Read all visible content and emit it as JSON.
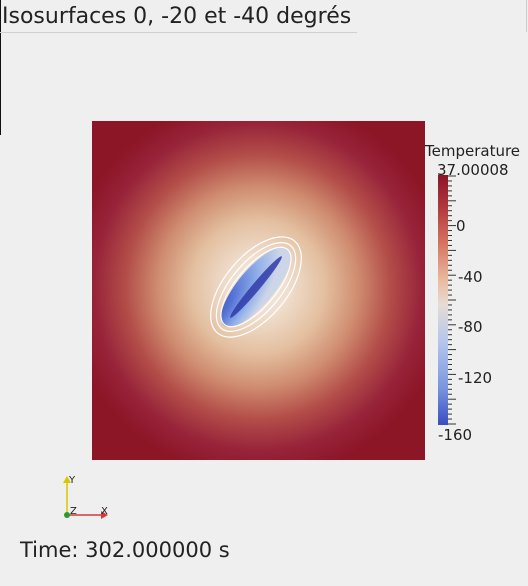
{
  "title": "Isosurfaces 0, -20 et -40 degrés",
  "colorbar": {
    "title": "Temperature",
    "max_label": "37.00008",
    "min_label": "-160",
    "tick_labels": [
      "0",
      "-40",
      "-80",
      "-120"
    ]
  },
  "orientation_axes": {
    "x_label": "X",
    "y_label": "Y",
    "z_label": "Z"
  },
  "time_label": "Time: 302.000000 s",
  "colors": {
    "background": "#efefef",
    "hot": "#8c1526",
    "cold": "#3a4cc0",
    "mid": "#e8dccb",
    "isoline": "#ffffff"
  }
}
